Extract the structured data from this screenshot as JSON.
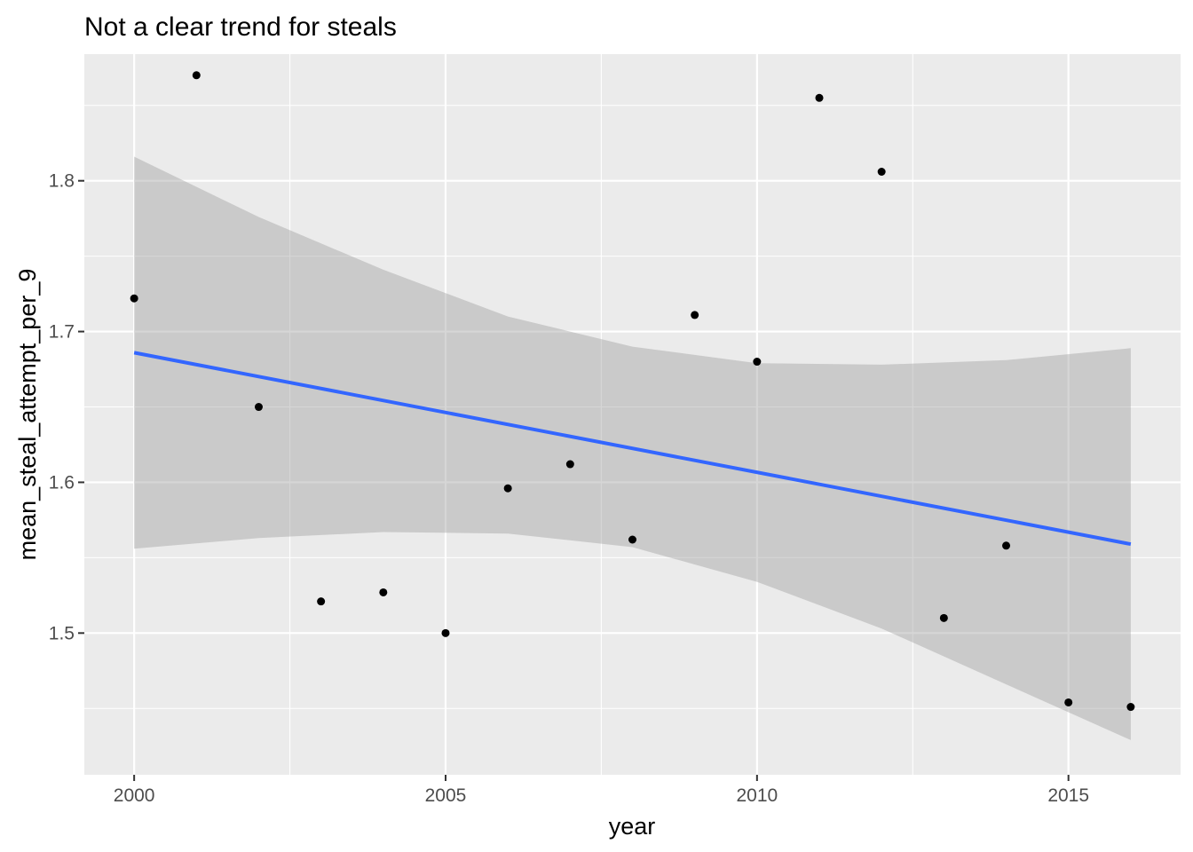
{
  "chart_data": {
    "type": "scatter",
    "title": "Not a clear trend for steals",
    "xlabel": "year",
    "ylabel": "mean_steal_attempt_per_9",
    "xlim": [
      1999.2,
      2016.8
    ],
    "ylim": [
      1.406,
      1.884
    ],
    "x_ticks": [
      2000,
      2005,
      2010,
      2015
    ],
    "x_tick_labels": [
      "2000",
      "2005",
      "2010",
      "2015"
    ],
    "y_ticks": [
      1.5,
      1.6,
      1.7,
      1.8
    ],
    "y_tick_labels": [
      "1.5",
      "1.6",
      "1.7",
      "1.8"
    ],
    "grid": true,
    "panel_background": "#ebebeb",
    "grid_color": "#ffffff",
    "points": {
      "color": "#000000",
      "x": [
        2000,
        2001,
        2002,
        2003,
        2004,
        2005,
        2006,
        2007,
        2008,
        2009,
        2010,
        2011,
        2012,
        2013,
        2014,
        2015,
        2016
      ],
      "y": [
        1.722,
        1.87,
        1.65,
        1.521,
        1.527,
        1.5,
        1.596,
        1.612,
        1.562,
        1.711,
        1.68,
        1.855,
        1.806,
        1.51,
        1.558,
        1.454,
        1.451
      ]
    },
    "trend_line": {
      "method": "lm",
      "color": "#3366ff",
      "x": [
        2000,
        2016
      ],
      "y": [
        1.686,
        1.559
      ]
    },
    "confidence_band": {
      "color": "#999999",
      "opacity": 0.4,
      "x": [
        2000,
        2002,
        2004,
        2006,
        2008,
        2010,
        2012,
        2014,
        2016
      ],
      "lower": [
        1.556,
        1.563,
        1.567,
        1.566,
        1.557,
        1.534,
        1.503,
        1.466,
        1.429
      ],
      "upper": [
        1.816,
        1.776,
        1.741,
        1.71,
        1.69,
        1.679,
        1.678,
        1.681,
        1.689
      ]
    }
  }
}
